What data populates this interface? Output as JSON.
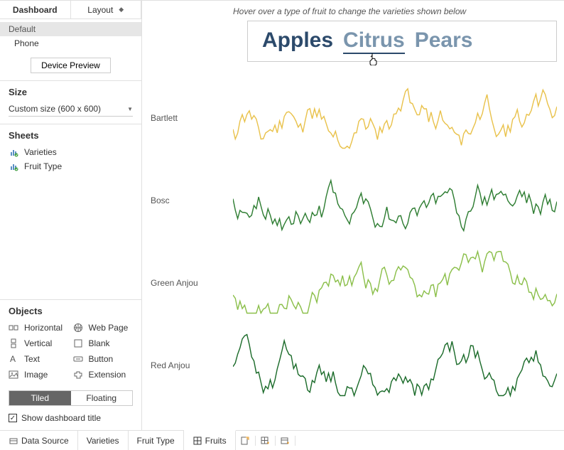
{
  "sidebar": {
    "tabs": {
      "dashboard": "Dashboard",
      "layout": "Layout"
    },
    "devices": {
      "default": "Default",
      "phone": "Phone"
    },
    "preview_btn": "Device Preview",
    "size": {
      "title": "Size",
      "value": "Custom size (600 x 600)"
    },
    "sheets": {
      "title": "Sheets",
      "items": [
        "Varieties",
        "Fruit Type"
      ]
    },
    "objects": {
      "title": "Objects",
      "items": [
        {
          "label": "Horizontal"
        },
        {
          "label": "Web Page"
        },
        {
          "label": "Vertical"
        },
        {
          "label": "Blank"
        },
        {
          "label": "Text"
        },
        {
          "label": "Button"
        },
        {
          "label": "Image"
        },
        {
          "label": "Extension"
        }
      ]
    },
    "layout_mode": {
      "tiled": "Tiled",
      "floating": "Floating"
    },
    "show_title": "Show dashboard title"
  },
  "canvas": {
    "hover_text": "Hover over a type of fruit to change the varieties shown below",
    "fruits": {
      "a": "Apples",
      "b": "Citrus",
      "c": "Pears"
    },
    "rows": [
      {
        "label": "Bartlett",
        "color": "#e9c24c",
        "seed": 11
      },
      {
        "label": "Bosc",
        "color": "#2e7d32",
        "seed": 23
      },
      {
        "label": "Green Anjou",
        "color": "#8bbf4a",
        "seed": 37
      },
      {
        "label": "Red Anjou",
        "color": "#1b6b2a",
        "seed": 51
      }
    ],
    "spark": {
      "points": 140,
      "stroke_width": 1.4
    }
  },
  "footer": {
    "tabs": [
      "Data Source",
      "Varieties",
      "Fruit Type",
      "Fruits"
    ],
    "active": 3
  }
}
